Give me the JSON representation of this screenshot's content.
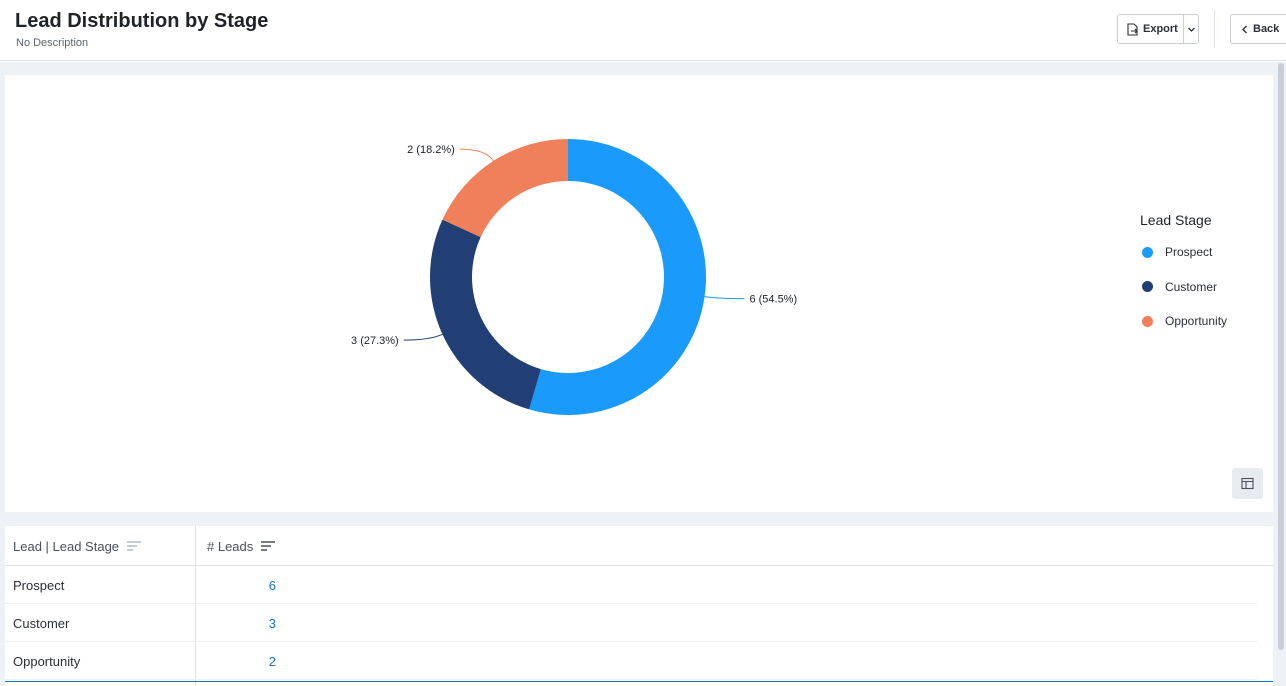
{
  "header": {
    "title": "Lead Distribution by Stage",
    "description": "No Description",
    "export_label": "Export",
    "back_label": "Back"
  },
  "chart_data": {
    "type": "pie",
    "categories": [
      "Prospect",
      "Customer",
      "Opportunity"
    ],
    "values": [
      6,
      3,
      2
    ],
    "percentages": [
      "54.5%",
      "27.3%",
      "18.2%"
    ],
    "data_labels": [
      "6 (54.5%)",
      "3 (27.3%)",
      "2 (18.2%)"
    ],
    "colors": [
      "#1a9bfc",
      "#213f74",
      "#ef8059"
    ],
    "donut": true,
    "legend_title": "Lead Stage",
    "legend_position": "right"
  },
  "table": {
    "headers": [
      "Lead | Lead Stage",
      "# Leads"
    ],
    "rows": [
      {
        "stage": "Prospect",
        "leads": "6"
      },
      {
        "stage": "Customer",
        "leads": "3"
      },
      {
        "stage": "Opportunity",
        "leads": "2"
      }
    ]
  },
  "icons": {
    "export": "export-icon",
    "dropdown": "chevron-down-icon",
    "back": "chevron-left-icon",
    "table_view": "table-icon",
    "sort": "sort-icon"
  }
}
